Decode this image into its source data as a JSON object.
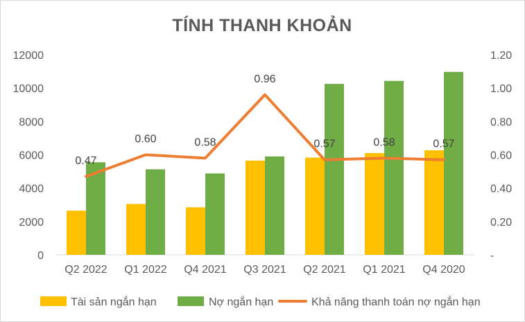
{
  "chart_data": {
    "type": "bar",
    "title": "TÍNH THANH KHOẢN",
    "categories": [
      "Q2 2022",
      "Q1 2022",
      "Q4 2021",
      "Q3 2021",
      "Q2 2021",
      "Q1 2021",
      "Q4 2020"
    ],
    "series": [
      {
        "name": "Tài sản ngắn hạn",
        "type": "bar",
        "axis": "left",
        "color": "#FFC000",
        "values": [
          2650,
          3050,
          2850,
          5650,
          5830,
          6100,
          6270
        ]
      },
      {
        "name": "Nợ ngắn hạn",
        "type": "bar",
        "axis": "left",
        "color": "#70AD47",
        "values": [
          5550,
          5130,
          4880,
          5900,
          10250,
          10430,
          10970
        ]
      },
      {
        "name": "Khả năng thanh toán nợ ngắn hạn",
        "type": "line",
        "axis": "right",
        "color": "#ED7D31",
        "values": [
          0.47,
          0.6,
          0.58,
          0.96,
          0.57,
          0.58,
          0.57
        ],
        "labels": [
          "0.47",
          "0.60",
          "0.58",
          "0.96",
          "0.57",
          "0.58",
          "0.57"
        ]
      }
    ],
    "y_left": {
      "min": 0,
      "max": 12000,
      "ticks": [
        "0",
        "2000",
        "4000",
        "6000",
        "8000",
        "10000",
        "12000"
      ]
    },
    "y_right": {
      "min": 0,
      "max": 1.2,
      "ticks": [
        "-",
        "0.20",
        "0.40",
        "0.60",
        "0.80",
        "1.00",
        "1.20"
      ]
    },
    "grid": false,
    "legend": "bottom"
  }
}
